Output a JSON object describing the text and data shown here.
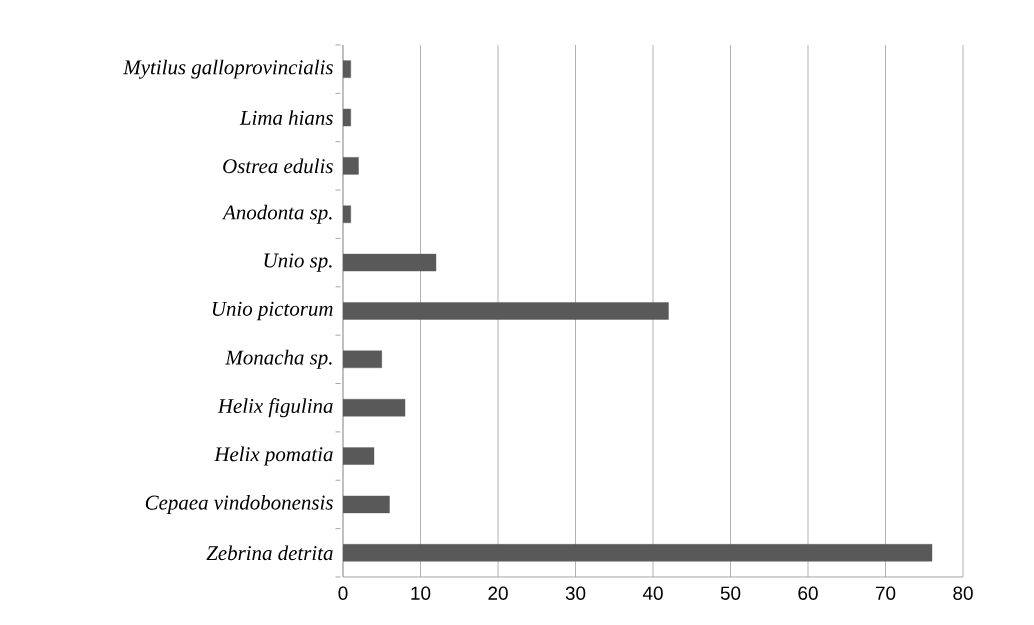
{
  "chart_data": {
    "type": "bar",
    "orientation": "horizontal",
    "categories": [
      "Mytilus galloprovincialis",
      "Lima hians",
      "Ostrea edulis",
      "Anodonta sp.",
      "Unio sp.",
      "Unio pictorum",
      "Monacha sp.",
      "Helix figulina",
      "Helix pomatia",
      "Cepaea vindobonensis",
      "Zebrina detrita"
    ],
    "values": [
      1,
      1,
      2,
      1,
      12,
      42,
      5,
      8,
      4,
      6,
      76
    ],
    "color": "#595959",
    "xlim": [
      0,
      80
    ],
    "xticks": [
      0,
      10,
      20,
      30,
      40,
      50,
      60,
      70,
      80
    ],
    "grid": "x"
  }
}
